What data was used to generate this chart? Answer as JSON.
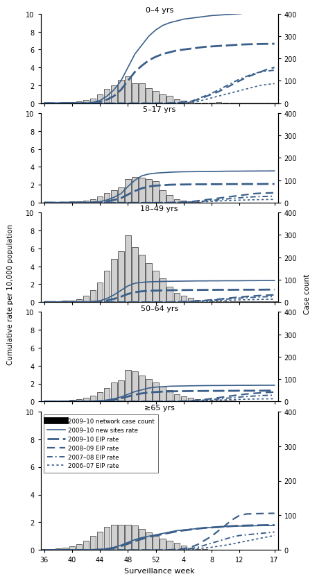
{
  "age_group_keys": [
    "0-4 yrs",
    "5-17 yrs",
    "18-49 yrs",
    "50-64 yrs",
    ">=65 yrs"
  ],
  "age_group_titles": [
    "0–4 yrs",
    "5–17 yrs",
    "18–49 yrs",
    "50–64 yrs",
    "≥65 yrs"
  ],
  "x_tick_labels": [
    "36",
    "40",
    "44",
    "48",
    "52",
    "4",
    "8",
    "12",
    "17"
  ],
  "x_tick_positions": [
    0,
    4,
    8,
    12,
    16,
    20,
    24,
    28,
    33
  ],
  "xlabel": "Surveillance week",
  "ylabel_left": "Cumulative rate per 10,000 population",
  "ylabel_right": "Case count",
  "ylim_left": [
    0,
    10
  ],
  "ylim_right": [
    0,
    400
  ],
  "yticks_left": [
    0,
    2,
    4,
    6,
    8,
    10
  ],
  "yticks_right": [
    0,
    100,
    200,
    300,
    400
  ],
  "bar_color": "#d0d0d0",
  "bar_edge_color": "#000000",
  "line_color": "#3a5f8a",
  "legend_entries": [
    "2009–10 network case count",
    "2009–10 new sites rate",
    "2009–10 EIP rate",
    "2008–09 EIP rate",
    "2007–08 EIP rate",
    "2006–07 EIP rate"
  ],
  "n_weeks": 34,
  "panels": {
    "0-4 yrs": {
      "bar_counts": [
        2,
        2,
        3,
        4,
        5,
        8,
        14,
        22,
        40,
        65,
        80,
        105,
        120,
        88,
        88,
        66,
        54,
        40,
        32,
        18,
        13,
        5,
        3,
        3,
        1,
        4,
        3,
        3,
        1,
        1,
        1,
        1,
        1,
        1
      ],
      "new_sites_rate": [
        0,
        0,
        0,
        0,
        0,
        0,
        0,
        0.1,
        0.3,
        0.8,
        1.5,
        2.5,
        4.0,
        5.5,
        6.5,
        7.5,
        8.2,
        8.7,
        9.0,
        9.2,
        9.4,
        9.5,
        9.6,
        9.7,
        9.8,
        9.85,
        9.9,
        9.95,
        10.0,
        10.1,
        10.2,
        10.3,
        10.4,
        10.5
      ],
      "eip_rate_2009": [
        0,
        0,
        0,
        0,
        0,
        0,
        0,
        0.05,
        0.15,
        0.4,
        0.8,
        1.5,
        2.5,
        3.5,
        4.2,
        4.8,
        5.2,
        5.5,
        5.7,
        5.9,
        6.0,
        6.1,
        6.2,
        6.3,
        6.35,
        6.4,
        6.45,
        6.5,
        6.55,
        6.58,
        6.6,
        6.62,
        6.63,
        6.65
      ],
      "eip_rate_2008": [
        0,
        0,
        0,
        0,
        0,
        0,
        0,
        0,
        0,
        0,
        0,
        0,
        0,
        0,
        0,
        0,
        0,
        0,
        0.02,
        0.05,
        0.1,
        0.2,
        0.4,
        0.7,
        1.0,
        1.3,
        1.7,
        2.1,
        2.5,
        2.9,
        3.2,
        3.5,
        3.8,
        4.0
      ],
      "eip_rate_2007": [
        0,
        0,
        0,
        0,
        0,
        0,
        0,
        0,
        0,
        0,
        0,
        0,
        0,
        0,
        0,
        0,
        0,
        0,
        0.02,
        0.05,
        0.1,
        0.2,
        0.5,
        0.8,
        1.1,
        1.5,
        1.9,
        2.3,
        2.7,
        3.0,
        3.3,
        3.5,
        3.6,
        3.7
      ],
      "eip_rate_2006": [
        0,
        0,
        0,
        0,
        0,
        0,
        0,
        0,
        0,
        0,
        0,
        0,
        0,
        0,
        0,
        0,
        0,
        0,
        0.01,
        0.03,
        0.05,
        0.1,
        0.2,
        0.4,
        0.6,
        0.8,
        1.0,
        1.2,
        1.4,
        1.6,
        1.8,
        2.0,
        2.1,
        2.2
      ]
    },
    "5-17 yrs": {
      "bar_counts": [
        1,
        2,
        2,
        3,
        5,
        7,
        10,
        16,
        28,
        42,
        55,
        68,
        105,
        115,
        110,
        105,
        95,
        55,
        33,
        14,
        8,
        5,
        3,
        1,
        1,
        1,
        1,
        1,
        1,
        1,
        0,
        0,
        0,
        0
      ],
      "new_sites_rate": [
        0,
        0,
        0,
        0,
        0,
        0,
        0,
        0.05,
        0.1,
        0.3,
        0.6,
        1.0,
        1.8,
        2.5,
        3.0,
        3.2,
        3.3,
        3.35,
        3.4,
        3.43,
        3.45,
        3.46,
        3.47,
        3.48,
        3.49,
        3.5,
        3.51,
        3.52,
        3.52,
        3.53,
        3.53,
        3.54,
        3.54,
        3.55
      ],
      "eip_rate_2009": [
        0,
        0,
        0,
        0,
        0,
        0,
        0,
        0.02,
        0.05,
        0.15,
        0.3,
        0.5,
        0.9,
        1.3,
        1.6,
        1.8,
        1.9,
        1.95,
        2.0,
        2.02,
        2.03,
        2.04,
        2.05,
        2.05,
        2.06,
        2.06,
        2.07,
        2.07,
        2.07,
        2.08,
        2.08,
        2.08,
        2.09,
        2.09
      ],
      "eip_rate_2008": [
        0,
        0,
        0,
        0,
        0,
        0,
        0,
        0,
        0,
        0,
        0,
        0,
        0,
        0,
        0,
        0,
        0,
        0,
        0.01,
        0.03,
        0.05,
        0.1,
        0.2,
        0.3,
        0.4,
        0.5,
        0.6,
        0.7,
        0.8,
        0.9,
        1.0,
        1.05,
        1.08,
        1.1
      ],
      "eip_rate_2007": [
        0,
        0,
        0,
        0,
        0,
        0,
        0,
        0,
        0,
        0,
        0,
        0,
        0,
        0,
        0,
        0,
        0,
        0,
        0.01,
        0.02,
        0.04,
        0.07,
        0.12,
        0.18,
        0.25,
        0.32,
        0.4,
        0.47,
        0.54,
        0.6,
        0.65,
        0.68,
        0.7,
        0.72
      ],
      "eip_rate_2006": [
        0,
        0,
        0,
        0,
        0,
        0,
        0,
        0,
        0,
        0,
        0,
        0,
        0,
        0,
        0,
        0,
        0,
        0,
        0.01,
        0.02,
        0.03,
        0.05,
        0.08,
        0.11,
        0.14,
        0.18,
        0.22,
        0.25,
        0.28,
        0.3,
        0.32,
        0.34,
        0.35,
        0.36
      ]
    },
    "18-49 yrs": {
      "bar_counts": [
        1,
        2,
        4,
        6,
        8,
        14,
        28,
        52,
        88,
        140,
        192,
        228,
        298,
        245,
        210,
        175,
        140,
        105,
        70,
        42,
        28,
        18,
        10,
        7,
        5,
        4,
        3,
        3,
        3,
        3,
        3,
        3,
        3,
        3
      ],
      "new_sites_rate": [
        0,
        0,
        0,
        0,
        0,
        0,
        0,
        0.05,
        0.15,
        0.4,
        0.8,
        1.3,
        1.8,
        2.1,
        2.2,
        2.25,
        2.28,
        2.3,
        2.32,
        2.33,
        2.34,
        2.35,
        2.36,
        2.36,
        2.37,
        2.37,
        2.38,
        2.38,
        2.38,
        2.39,
        2.39,
        2.4,
        2.4,
        2.4
      ],
      "eip_rate_2009": [
        0,
        0,
        0,
        0,
        0,
        0,
        0,
        0.02,
        0.07,
        0.18,
        0.35,
        0.6,
        0.9,
        1.1,
        1.2,
        1.25,
        1.28,
        1.3,
        1.32,
        1.33,
        1.34,
        1.35,
        1.35,
        1.36,
        1.36,
        1.37,
        1.37,
        1.37,
        1.38,
        1.38,
        1.38,
        1.38,
        1.39,
        1.39
      ],
      "eip_rate_2008": [
        0,
        0,
        0,
        0,
        0,
        0,
        0,
        0,
        0,
        0,
        0,
        0,
        0,
        0,
        0,
        0,
        0,
        0,
        0.01,
        0.02,
        0.04,
        0.07,
        0.12,
        0.18,
        0.25,
        0.32,
        0.4,
        0.48,
        0.55,
        0.62,
        0.68,
        0.73,
        0.77,
        0.8
      ],
      "eip_rate_2007": [
        0,
        0,
        0,
        0,
        0,
        0,
        0,
        0,
        0,
        0,
        0,
        0,
        0,
        0,
        0,
        0,
        0,
        0,
        0.01,
        0.02,
        0.03,
        0.06,
        0.1,
        0.15,
        0.2,
        0.26,
        0.32,
        0.38,
        0.44,
        0.49,
        0.53,
        0.57,
        0.6,
        0.62
      ],
      "eip_rate_2006": [
        0,
        0,
        0,
        0,
        0,
        0,
        0,
        0,
        0,
        0,
        0,
        0,
        0,
        0,
        0,
        0,
        0,
        0,
        0.005,
        0.01,
        0.02,
        0.04,
        0.06,
        0.09,
        0.12,
        0.15,
        0.18,
        0.21,
        0.24,
        0.26,
        0.28,
        0.3,
        0.31,
        0.32
      ]
    },
    "50-64 yrs": {
      "bar_counts": [
        2,
        3,
        4,
        4,
        7,
        10,
        17,
        26,
        40,
        60,
        84,
        94,
        140,
        133,
        117,
        100,
        84,
        67,
        50,
        33,
        23,
        16,
        10,
        7,
        5,
        3,
        3,
        3,
        2,
        2,
        2,
        1,
        1,
        1
      ],
      "new_sites_rate": [
        0,
        0,
        0,
        0,
        0,
        0,
        0,
        0.02,
        0.06,
        0.15,
        0.3,
        0.5,
        0.8,
        1.1,
        1.3,
        1.5,
        1.6,
        1.65,
        1.7,
        1.72,
        1.73,
        1.75,
        1.76,
        1.77,
        1.78,
        1.78,
        1.79,
        1.79,
        1.8,
        1.8,
        1.8,
        1.81,
        1.81,
        1.81
      ],
      "eip_rate_2009": [
        0,
        0,
        0,
        0,
        0,
        0,
        0,
        0.01,
        0.04,
        0.1,
        0.2,
        0.35,
        0.55,
        0.75,
        0.9,
        1.0,
        1.05,
        1.1,
        1.12,
        1.14,
        1.15,
        1.16,
        1.17,
        1.17,
        1.18,
        1.18,
        1.19,
        1.19,
        1.2,
        1.2,
        1.2,
        1.2,
        1.21,
        1.21
      ],
      "eip_rate_2008": [
        0,
        0,
        0,
        0,
        0,
        0,
        0,
        0,
        0,
        0,
        0,
        0,
        0,
        0,
        0,
        0,
        0,
        0,
        0.01,
        0.02,
        0.04,
        0.08,
        0.14,
        0.22,
        0.32,
        0.42,
        0.53,
        0.64,
        0.74,
        0.83,
        0.9,
        0.96,
        1.01,
        1.05
      ],
      "eip_rate_2007": [
        0,
        0,
        0,
        0,
        0,
        0,
        0,
        0,
        0,
        0,
        0,
        0,
        0,
        0,
        0,
        0,
        0,
        0,
        0.01,
        0.02,
        0.03,
        0.06,
        0.1,
        0.15,
        0.21,
        0.28,
        0.35,
        0.42,
        0.49,
        0.55,
        0.6,
        0.65,
        0.68,
        0.7
      ],
      "eip_rate_2006": [
        0,
        0,
        0,
        0,
        0,
        0,
        0,
        0,
        0,
        0,
        0,
        0,
        0,
        0,
        0,
        0,
        0,
        0,
        0.005,
        0.01,
        0.02,
        0.04,
        0.06,
        0.09,
        0.12,
        0.15,
        0.18,
        0.21,
        0.23,
        0.25,
        0.27,
        0.28,
        0.29,
        0.3
      ]
    },
    ">=65 yrs": {
      "bar_counts": [
        2,
        3,
        5,
        7,
        10,
        16,
        26,
        40,
        53,
        66,
        73,
        73,
        73,
        70,
        60,
        50,
        40,
        33,
        26,
        20,
        13,
        7,
        3,
        2,
        1,
        1,
        1,
        0,
        0,
        0,
        0,
        0,
        0,
        0
      ],
      "new_sites_rate": [
        0,
        0,
        0,
        0,
        0,
        0,
        0,
        0.02,
        0.05,
        0.1,
        0.2,
        0.35,
        0.55,
        0.75,
        0.9,
        1.0,
        1.1,
        1.2,
        1.3,
        1.4,
        1.45,
        1.5,
        1.55,
        1.6,
        1.63,
        1.65,
        1.7,
        1.72,
        1.73,
        1.74,
        1.75,
        1.76,
        1.77,
        1.78
      ],
      "eip_rate_2009": [
        0,
        0,
        0,
        0,
        0,
        0,
        0,
        0.01,
        0.03,
        0.08,
        0.15,
        0.28,
        0.45,
        0.65,
        0.8,
        0.95,
        1.05,
        1.15,
        1.25,
        1.35,
        1.42,
        1.48,
        1.54,
        1.6,
        1.63,
        1.66,
        1.7,
        1.73,
        1.75,
        1.77,
        1.78,
        1.79,
        1.8,
        1.81
      ],
      "eip_rate_2008": [
        0,
        0,
        0,
        0,
        0,
        0,
        0,
        0,
        0,
        0,
        0,
        0,
        0,
        0,
        0,
        0,
        0,
        0,
        0.02,
        0.05,
        0.1,
        0.2,
        0.4,
        0.7,
        1.0,
        1.4,
        1.8,
        2.2,
        2.5,
        2.6,
        2.62,
        2.63,
        2.64,
        2.65
      ],
      "eip_rate_2007": [
        0,
        0,
        0,
        0,
        0,
        0,
        0,
        0,
        0,
        0,
        0,
        0,
        0,
        0,
        0,
        0,
        0,
        0,
        0.01,
        0.02,
        0.05,
        0.1,
        0.2,
        0.35,
        0.5,
        0.65,
        0.8,
        0.95,
        1.05,
        1.1,
        1.15,
        1.2,
        1.25,
        1.3
      ],
      "eip_rate_2006": [
        0,
        0,
        0,
        0,
        0,
        0,
        0,
        0,
        0,
        0,
        0,
        0,
        0,
        0,
        0,
        0,
        0,
        0,
        0.01,
        0.02,
        0.03,
        0.06,
        0.1,
        0.15,
        0.2,
        0.28,
        0.35,
        0.45,
        0.55,
        0.65,
        0.75,
        0.85,
        0.95,
        1.05
      ]
    }
  }
}
